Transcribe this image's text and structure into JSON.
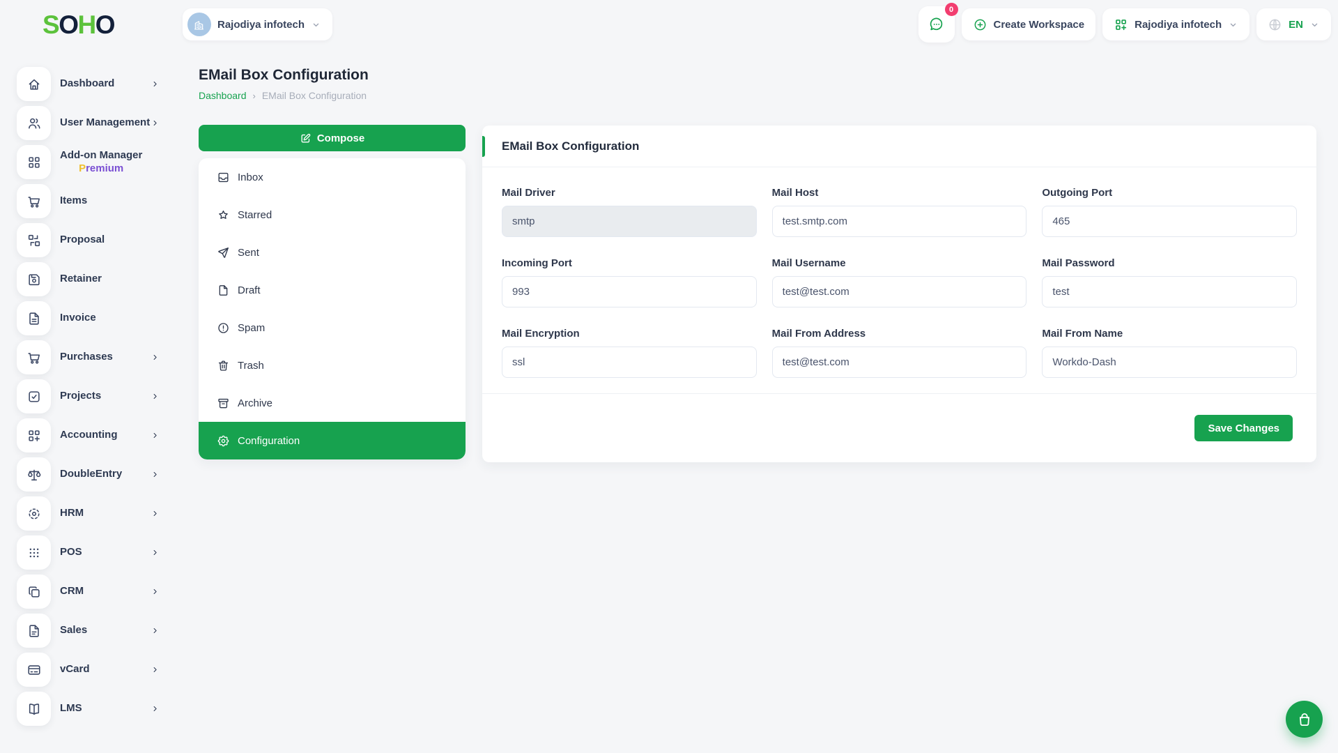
{
  "colors": {
    "primary_green": "#17A24F",
    "logo_green": "#5CC23C",
    "logo_dark": "#13203A",
    "badge_pink": "#F23D6F",
    "premium_yellow": "#EFBE2B",
    "premium_purple": "#7A4FD3",
    "avatar_blue": "#A9C7E5"
  },
  "brand": {
    "logo_text": "SOHO"
  },
  "header": {
    "workspace_switcher": {
      "label": "Rajodiya infotech",
      "icon": "building-icon"
    },
    "chat": {
      "icon": "message-icon",
      "badge_count": "0"
    },
    "create_workspace": {
      "label": "Create Workspace",
      "icon": "circle-plus-icon"
    },
    "workspace_menu": {
      "label": "Rajodiya infotech",
      "icon": "grid-plus-icon"
    },
    "language": {
      "label": "EN",
      "icon": "globe-icon"
    }
  },
  "sidebar": {
    "items": [
      {
        "label": "Dashboard",
        "icon": "home-icon",
        "chevron": true
      },
      {
        "label": "User Management",
        "icon": "users-icon",
        "chevron": true
      },
      {
        "label": "Add-on Manager",
        "sub_label": "Premium",
        "icon": "grid-icon",
        "chevron": false
      },
      {
        "label": "Items",
        "icon": "cart-icon",
        "chevron": false
      },
      {
        "label": "Proposal",
        "icon": "schema-icon",
        "chevron": false
      },
      {
        "label": "Retainer",
        "icon": "floppy-icon",
        "chevron": false
      },
      {
        "label": "Invoice",
        "icon": "file-invoice-icon",
        "chevron": false
      },
      {
        "label": "Purchases",
        "icon": "cart-icon",
        "chevron": true
      },
      {
        "label": "Projects",
        "icon": "check-square-icon",
        "chevron": true
      },
      {
        "label": "Accounting",
        "icon": "grid-plus-icon",
        "chevron": true
      },
      {
        "label": "DoubleEntry",
        "icon": "scale-icon",
        "chevron": true
      },
      {
        "label": "HRM",
        "icon": "focus-icon",
        "chevron": true
      },
      {
        "label": "POS",
        "icon": "grid-dots-icon",
        "chevron": true
      },
      {
        "label": "CRM",
        "icon": "copy-icon",
        "chevron": true
      },
      {
        "label": "Sales",
        "icon": "file-icon",
        "chevron": true
      },
      {
        "label": "vCard",
        "icon": "credit-card-icon",
        "chevron": true
      },
      {
        "label": "LMS",
        "icon": "book-icon",
        "chevron": true
      }
    ]
  },
  "page": {
    "title": "EMail Box Configuration",
    "breadcrumb": [
      "Dashboard",
      "EMail Box Configuration"
    ],
    "breadcrumb_separator": "›"
  },
  "mail": {
    "compose_label": "Compose",
    "compose_icon": "compose-icon",
    "folders": [
      {
        "label": "Inbox",
        "icon": "inbox-icon",
        "active": false
      },
      {
        "label": "Starred",
        "icon": "star-icon",
        "active": false
      },
      {
        "label": "Sent",
        "icon": "send-icon",
        "active": false
      },
      {
        "label": "Draft",
        "icon": "file-blank-icon",
        "active": false
      },
      {
        "label": "Spam",
        "icon": "alert-circle-icon",
        "active": false
      },
      {
        "label": "Trash",
        "icon": "trash-icon",
        "active": false
      },
      {
        "label": "Archive",
        "icon": "archive-icon",
        "active": false
      },
      {
        "label": "Configuration",
        "icon": "gear-icon",
        "active": true
      }
    ]
  },
  "panel": {
    "title": "EMail Box Configuration",
    "save_button": "Save Changes",
    "fields": [
      {
        "name": "mail-driver",
        "label": "Mail Driver",
        "value": "smtp",
        "disabled": true
      },
      {
        "name": "mail-host",
        "label": "Mail Host",
        "value": "test.smtp.com",
        "disabled": false
      },
      {
        "name": "outgoing-port",
        "label": "Outgoing Port",
        "value": "465",
        "disabled": false
      },
      {
        "name": "incoming-port",
        "label": "Incoming Port",
        "value": "993",
        "disabled": false
      },
      {
        "name": "mail-username",
        "label": "Mail Username",
        "value": "test@test.com",
        "disabled": false
      },
      {
        "name": "mail-password",
        "label": "Mail Password",
        "value": "test",
        "disabled": false
      },
      {
        "name": "mail-encryption",
        "label": "Mail Encryption",
        "value": "ssl",
        "disabled": false
      },
      {
        "name": "mail-from-address",
        "label": "Mail From Address",
        "value": "test@test.com",
        "disabled": false
      },
      {
        "name": "mail-from-name",
        "label": "Mail From Name",
        "value": "Workdo-Dash",
        "disabled": false
      }
    ]
  },
  "fab": {
    "icon": "shopping-bag-icon"
  }
}
